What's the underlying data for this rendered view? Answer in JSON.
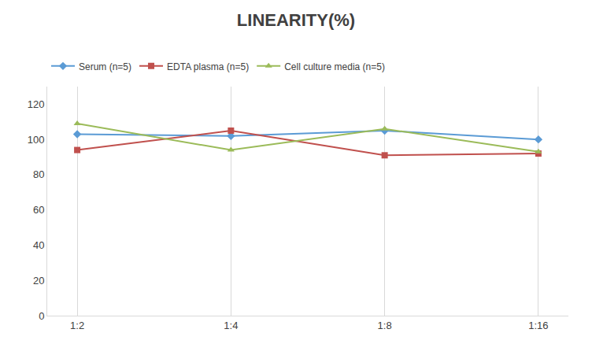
{
  "chart_data": {
    "type": "line",
    "title": "LINEARITY(%)",
    "categories": [
      "1:2",
      "1:4",
      "1:8",
      "1:16"
    ],
    "series": [
      {
        "name": "Serum (n=5)",
        "color": "#5b9bd5",
        "marker": "diamond",
        "values": [
          103,
          102,
          105,
          100
        ]
      },
      {
        "name": "EDTA plasma (n=5)",
        "color": "#c0504d",
        "marker": "square",
        "values": [
          94,
          105,
          91,
          92
        ]
      },
      {
        "name": "Cell culture media (n=5)",
        "color": "#9bbb59",
        "marker": "triangle-up",
        "values": [
          109,
          94,
          106,
          93
        ]
      }
    ],
    "ylim": [
      0,
      130
    ],
    "yticks": [
      0,
      20,
      40,
      60,
      80,
      100,
      120
    ],
    "grid": "x",
    "legend": "upper left"
  }
}
